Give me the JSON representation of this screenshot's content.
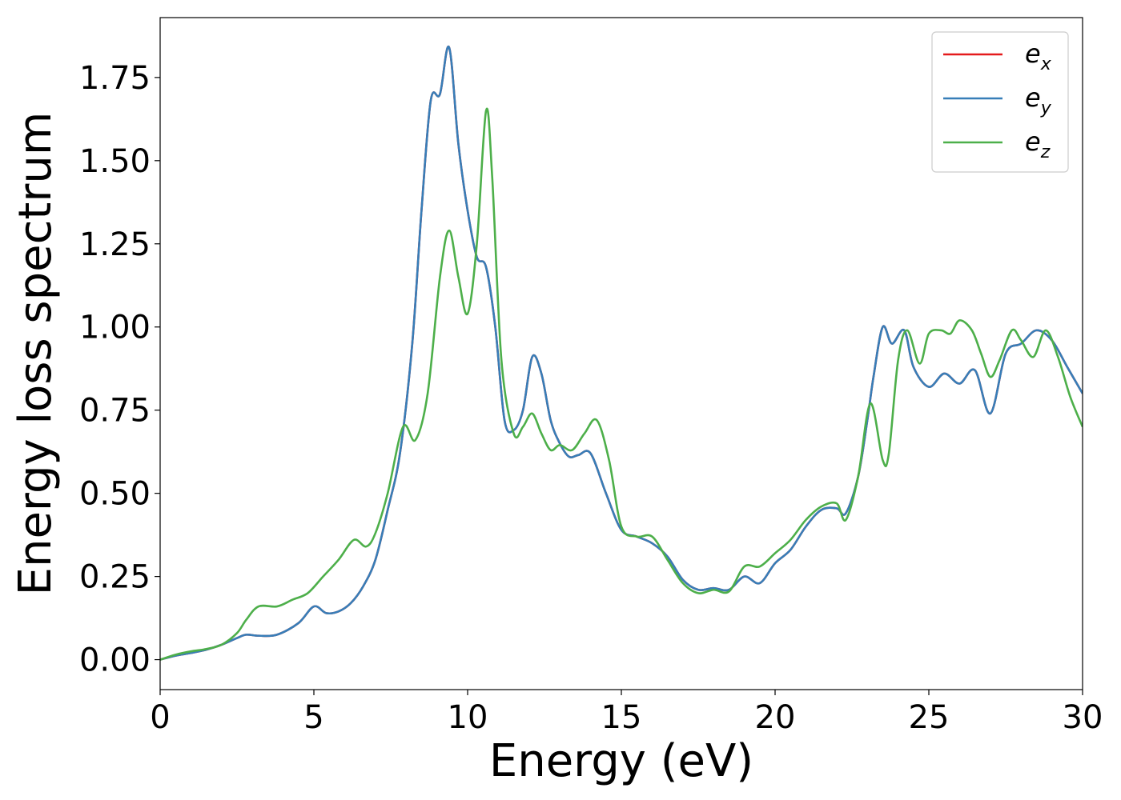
{
  "chart_data": {
    "type": "line",
    "xlabel": "Energy (eV)",
    "ylabel": "Energy loss spectrum",
    "xlim": [
      0,
      30
    ],
    "ylim": [
      -0.09,
      1.93
    ],
    "x_ticks": [
      0,
      5,
      10,
      15,
      20,
      25,
      30
    ],
    "x_tick_labels": [
      "0",
      "5",
      "10",
      "15",
      "20",
      "25",
      "30"
    ],
    "y_ticks": [
      0.0,
      0.25,
      0.5,
      0.75,
      1.0,
      1.25,
      1.5,
      1.75
    ],
    "y_tick_labels": [
      "0.00",
      "0.25",
      "0.50",
      "0.75",
      "1.00",
      "1.25",
      "1.50",
      "1.75"
    ],
    "grid": false,
    "legend_position": "top-right",
    "series": [
      {
        "name": "e_x",
        "legend_base": "e",
        "legend_sub": "x",
        "color": "#e41a1c",
        "x": [
          0,
          0.5,
          1,
          1.5,
          2,
          2.5,
          2.8,
          3.2,
          3.8,
          4.5,
          5,
          5.4,
          5.8,
          6.2,
          6.6,
          7,
          7.4,
          7.8,
          8.2,
          8.5,
          8.8,
          9.1,
          9.4,
          9.7,
          10,
          10.3,
          10.6,
          10.9,
          11.2,
          11.5,
          11.8,
          12.1,
          12.4,
          12.7,
          13,
          13.3,
          13.6,
          14,
          14.5,
          15,
          15.5,
          16,
          16.5,
          17,
          17.5,
          18,
          18.5,
          19,
          19.5,
          20,
          20.5,
          21,
          21.5,
          22,
          22.3,
          22.7,
          23,
          23.2,
          23.5,
          23.8,
          24.2,
          24.5,
          25,
          25.5,
          26,
          26.5,
          27,
          27.5,
          28,
          28.5,
          29,
          29.5,
          30
        ],
        "y": [
          0,
          0.012,
          0.02,
          0.03,
          0.045,
          0.065,
          0.075,
          0.072,
          0.075,
          0.11,
          0.16,
          0.14,
          0.145,
          0.17,
          0.22,
          0.3,
          0.45,
          0.62,
          0.95,
          1.35,
          1.68,
          1.7,
          1.84,
          1.55,
          1.35,
          1.21,
          1.18,
          1.0,
          0.72,
          0.69,
          0.75,
          0.91,
          0.86,
          0.72,
          0.65,
          0.61,
          0.615,
          0.62,
          0.5,
          0.39,
          0.37,
          0.35,
          0.31,
          0.24,
          0.21,
          0.215,
          0.21,
          0.25,
          0.23,
          0.29,
          0.33,
          0.4,
          0.45,
          0.455,
          0.44,
          0.55,
          0.72,
          0.85,
          1.0,
          0.95,
          0.99,
          0.88,
          0.82,
          0.86,
          0.83,
          0.87,
          0.74,
          0.92,
          0.95,
          0.99,
          0.96,
          0.88,
          0.8
        ]
      },
      {
        "name": "e_y",
        "legend_base": "e",
        "legend_sub": "y",
        "color": "#377eb8",
        "x": [
          0,
          0.5,
          1,
          1.5,
          2,
          2.5,
          2.8,
          3.2,
          3.8,
          4.5,
          5,
          5.4,
          5.8,
          6.2,
          6.6,
          7,
          7.4,
          7.8,
          8.2,
          8.5,
          8.8,
          9.1,
          9.4,
          9.7,
          10,
          10.3,
          10.6,
          10.9,
          11.2,
          11.5,
          11.8,
          12.1,
          12.4,
          12.7,
          13,
          13.3,
          13.6,
          14,
          14.5,
          15,
          15.5,
          16,
          16.5,
          17,
          17.5,
          18,
          18.5,
          19,
          19.5,
          20,
          20.5,
          21,
          21.5,
          22,
          22.3,
          22.7,
          23,
          23.2,
          23.5,
          23.8,
          24.2,
          24.5,
          25,
          25.5,
          26,
          26.5,
          27,
          27.5,
          28,
          28.5,
          29,
          29.5,
          30
        ],
        "y": [
          0,
          0.012,
          0.02,
          0.03,
          0.045,
          0.065,
          0.075,
          0.072,
          0.075,
          0.11,
          0.16,
          0.14,
          0.145,
          0.17,
          0.22,
          0.3,
          0.45,
          0.62,
          0.95,
          1.35,
          1.68,
          1.7,
          1.84,
          1.55,
          1.35,
          1.21,
          1.18,
          1.0,
          0.72,
          0.69,
          0.75,
          0.91,
          0.86,
          0.72,
          0.65,
          0.61,
          0.615,
          0.62,
          0.5,
          0.39,
          0.37,
          0.35,
          0.31,
          0.24,
          0.21,
          0.215,
          0.21,
          0.25,
          0.23,
          0.29,
          0.33,
          0.4,
          0.45,
          0.455,
          0.44,
          0.55,
          0.72,
          0.85,
          1.0,
          0.95,
          0.99,
          0.88,
          0.82,
          0.86,
          0.83,
          0.87,
          0.74,
          0.92,
          0.95,
          0.99,
          0.96,
          0.88,
          0.8
        ]
      },
      {
        "name": "e_z",
        "legend_base": "e",
        "legend_sub": "z",
        "color": "#4daf4a",
        "x": [
          0,
          0.5,
          1,
          1.5,
          2,
          2.5,
          2.8,
          3.2,
          3.8,
          4.3,
          4.8,
          5.3,
          5.8,
          6.3,
          6.7,
          7,
          7.4,
          7.9,
          8.3,
          8.7,
          9.1,
          9.4,
          9.7,
          10,
          10.3,
          10.6,
          10.8,
          11.1,
          11.5,
          11.8,
          12.1,
          12.4,
          12.7,
          13,
          13.4,
          13.8,
          14.2,
          14.6,
          15,
          15.5,
          16,
          16.5,
          17,
          17.5,
          18,
          18.5,
          19,
          19.5,
          20,
          20.5,
          21,
          21.5,
          22,
          22.3,
          22.7,
          23.1,
          23.5,
          23.7,
          24,
          24.3,
          24.7,
          25,
          25.4,
          25.7,
          26,
          26.4,
          26.7,
          27,
          27.3,
          27.7,
          28,
          28.4,
          28.8,
          29.2,
          29.6,
          30
        ],
        "y": [
          0,
          0.015,
          0.025,
          0.032,
          0.045,
          0.08,
          0.12,
          0.16,
          0.16,
          0.18,
          0.2,
          0.25,
          0.3,
          0.36,
          0.34,
          0.38,
          0.5,
          0.7,
          0.66,
          0.8,
          1.15,
          1.29,
          1.15,
          1.04,
          1.25,
          1.65,
          1.45,
          0.9,
          0.68,
          0.7,
          0.74,
          0.68,
          0.63,
          0.645,
          0.63,
          0.68,
          0.72,
          0.6,
          0.4,
          0.37,
          0.37,
          0.3,
          0.23,
          0.2,
          0.21,
          0.205,
          0.28,
          0.28,
          0.32,
          0.36,
          0.42,
          0.46,
          0.47,
          0.42,
          0.55,
          0.77,
          0.6,
          0.62,
          0.9,
          0.99,
          0.89,
          0.98,
          0.99,
          0.98,
          1.02,
          0.99,
          0.92,
          0.85,
          0.9,
          0.99,
          0.96,
          0.91,
          0.99,
          0.91,
          0.79,
          0.7
        ]
      }
    ]
  }
}
